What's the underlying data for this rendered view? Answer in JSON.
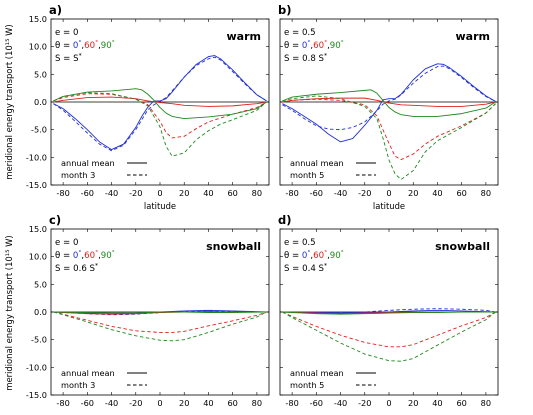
{
  "figure": {
    "ylabel": "meridional energy transport (10¹⁵ W)",
    "xlabel": "latitude"
  },
  "colors": {
    "theta0": "#1f2fd6",
    "theta60": "#e0201b",
    "theta90": "#1c8a1c",
    "legend": "#000000"
  },
  "chart_data": [
    {
      "id": "a",
      "panel_label": "a)",
      "type": "line",
      "regime": "warm",
      "params": {
        "e": "e = 0",
        "theta_prefix": "θ = ",
        "theta0": "0",
        "theta60": "60",
        "theta90": "90",
        "S": "S = S",
        "S_sup": "*"
      },
      "legend": {
        "mean": "annual mean",
        "month": "month 3"
      },
      "xlim": [
        -90,
        90
      ],
      "ylim": [
        -15,
        15
      ],
      "xticks": [
        -80,
        -60,
        -40,
        -20,
        0,
        20,
        40,
        60,
        80
      ],
      "yticks": [
        -15,
        -10,
        -5,
        0,
        5,
        10,
        15
      ],
      "show_xlabel": true,
      "show_yaxis": true,
      "series": [
        {
          "theta": 0,
          "style": "solid",
          "x": [
            -88,
            -80,
            -70,
            -60,
            -50,
            -40,
            -30,
            -20,
            -15,
            -10,
            -5,
            0,
            5,
            10,
            20,
            30,
            40,
            45,
            50,
            60,
            70,
            80,
            88
          ],
          "y": [
            -0.3,
            -1.2,
            -3,
            -5,
            -7.2,
            -8.6,
            -7.6,
            -4.6,
            -2.6,
            -0.9,
            0.2,
            0.2,
            0.6,
            1.8,
            4.5,
            6.8,
            8.2,
            8.4,
            7.8,
            5.8,
            3.5,
            1.3,
            0.2
          ]
        },
        {
          "theta": 0,
          "style": "dashed",
          "x": [
            -88,
            -80,
            -70,
            -60,
            -50,
            -40,
            -30,
            -20,
            -15,
            -10,
            -5,
            0,
            5,
            10,
            20,
            30,
            40,
            45,
            50,
            60,
            70,
            80,
            88
          ],
          "y": [
            -0.3,
            -1.5,
            -3.5,
            -5.6,
            -7.6,
            -8.8,
            -7.8,
            -5,
            -3.2,
            -1.4,
            -0.5,
            0.1,
            0.8,
            2,
            4.5,
            6.6,
            7.8,
            8.1,
            7.6,
            5.5,
            3.3,
            1.3,
            0.2
          ]
        },
        {
          "theta": 60,
          "style": "solid",
          "x": [
            -88,
            -80,
            -60,
            -40,
            -20,
            -10,
            0,
            10,
            20,
            40,
            60,
            80,
            88
          ],
          "y": [
            0,
            0.3,
            0.8,
            0.9,
            0.6,
            0.2,
            -0.1,
            -0.3,
            -0.6,
            -0.8,
            -0.7,
            -0.3,
            0
          ]
        },
        {
          "theta": 60,
          "style": "dashed",
          "x": [
            -88,
            -80,
            -60,
            -40,
            -20,
            -10,
            0,
            5,
            10,
            20,
            30,
            40,
            60,
            80,
            88
          ],
          "y": [
            0.2,
            0.8,
            1.5,
            1.4,
            0.5,
            -0.5,
            -3.5,
            -5.5,
            -6.5,
            -6.2,
            -4.8,
            -3.6,
            -2.2,
            -1,
            0
          ]
        },
        {
          "theta": 90,
          "style": "solid",
          "x": [
            -88,
            -80,
            -60,
            -40,
            -20,
            -15,
            -10,
            -5,
            0,
            5,
            10,
            20,
            40,
            60,
            80,
            88
          ],
          "y": [
            0.2,
            1,
            1.8,
            2,
            2.4,
            2.2,
            1.4,
            0.3,
            -1,
            -2,
            -2.6,
            -3,
            -2.7,
            -2.2,
            -1.2,
            0
          ]
        },
        {
          "theta": 90,
          "style": "dashed",
          "x": [
            -88,
            -80,
            -60,
            -40,
            -20,
            -10,
            0,
            5,
            10,
            20,
            30,
            40,
            50,
            60,
            80,
            88
          ],
          "y": [
            0.2,
            1,
            1.7,
            1.5,
            0.5,
            -0.7,
            -4.5,
            -8,
            -9.8,
            -9.2,
            -6.8,
            -5.2,
            -4,
            -3.2,
            -1.5,
            0
          ]
        }
      ]
    },
    {
      "id": "b",
      "panel_label": "b)",
      "type": "line",
      "regime": "warm",
      "params": {
        "e": "e = 0.5",
        "theta_prefix": "θ = ",
        "theta0": "0",
        "theta60": "60",
        "theta90": "90",
        "S": "S = 0.8 S",
        "S_sup": "*"
      },
      "legend": {
        "mean": "annual mean",
        "month": "month 5"
      },
      "xlim": [
        -90,
        90
      ],
      "ylim": [
        -15,
        15
      ],
      "xticks": [
        -80,
        -60,
        -40,
        -20,
        0,
        20,
        40,
        60,
        80
      ],
      "yticks": [
        -15,
        -10,
        -5,
        0,
        5,
        10,
        15
      ],
      "show_xlabel": true,
      "show_yaxis": false,
      "series": [
        {
          "theta": 0,
          "style": "solid",
          "x": [
            -88,
            -80,
            -70,
            -60,
            -50,
            -40,
            -30,
            -20,
            -10,
            -5,
            0,
            5,
            10,
            20,
            30,
            40,
            45,
            50,
            60,
            70,
            80,
            88
          ],
          "y": [
            -0.3,
            -1.2,
            -2.6,
            -4,
            -5.8,
            -7.2,
            -6.6,
            -4.2,
            -1.5,
            0.4,
            0.6,
            0.6,
            1.4,
            4,
            6,
            6.9,
            6.8,
            6.2,
            4.6,
            2.8,
            1.1,
            0.1
          ]
        },
        {
          "theta": 0,
          "style": "dashed",
          "x": [
            -88,
            -80,
            -70,
            -60,
            -50,
            -40,
            -30,
            -20,
            -10,
            -5,
            0,
            5,
            10,
            20,
            30,
            40,
            45,
            50,
            60,
            70,
            80,
            88
          ],
          "y": [
            -0.5,
            -1.5,
            -3,
            -4.3,
            -4.9,
            -5,
            -4.6,
            -3.6,
            -1.6,
            -0.4,
            0.2,
            0.5,
            1.3,
            3.4,
            5.2,
            6.4,
            6.5,
            6,
            4.4,
            2.6,
            1,
            0.1
          ]
        },
        {
          "theta": 60,
          "style": "solid",
          "x": [
            -88,
            -80,
            -60,
            -40,
            -20,
            -10,
            0,
            10,
            20,
            40,
            60,
            80,
            88
          ],
          "y": [
            0,
            0.3,
            0.6,
            0.7,
            0.7,
            0.3,
            -0.2,
            -0.5,
            -0.6,
            -0.8,
            -0.8,
            -0.4,
            0
          ]
        },
        {
          "theta": 60,
          "style": "dashed",
          "x": [
            -88,
            -80,
            -60,
            -40,
            -20,
            -10,
            0,
            5,
            10,
            20,
            30,
            40,
            60,
            80,
            88
          ],
          "y": [
            0,
            0.3,
            0.5,
            0.3,
            -0.5,
            -2.5,
            -7.5,
            -9.8,
            -10.4,
            -9.4,
            -7.6,
            -6.2,
            -4.3,
            -2,
            -0.3
          ]
        },
        {
          "theta": 90,
          "style": "solid",
          "x": [
            -88,
            -80,
            -60,
            -40,
            -20,
            -15,
            -10,
            -5,
            0,
            5,
            10,
            20,
            40,
            60,
            80,
            88
          ],
          "y": [
            0.2,
            0.9,
            1.4,
            1.7,
            2.1,
            2.2,
            1.6,
            0.3,
            -1,
            -1.8,
            -2.3,
            -2.6,
            -2.6,
            -2.1,
            -1.1,
            0
          ]
        },
        {
          "theta": 90,
          "style": "dashed",
          "x": [
            -88,
            -80,
            -60,
            -40,
            -20,
            -10,
            -5,
            0,
            5,
            10,
            20,
            30,
            40,
            60,
            80,
            88
          ],
          "y": [
            0.2,
            0.6,
            1.1,
            0.6,
            -0.8,
            -3,
            -6.5,
            -10.5,
            -13,
            -14,
            -12.4,
            -9,
            -7,
            -4.6,
            -2,
            -0.3
          ]
        }
      ]
    },
    {
      "id": "c",
      "panel_label": "c)",
      "type": "line",
      "regime": "snowball",
      "params": {
        "e": "e = 0",
        "theta_prefix": "θ = ",
        "theta0": "0",
        "theta60": "60",
        "theta90": "90",
        "S": "S = 0.6 S",
        "S_sup": "*"
      },
      "legend": {
        "mean": "annual mean",
        "month": "month 3"
      },
      "xlim": [
        -90,
        90
      ],
      "ylim": [
        -15,
        15
      ],
      "xticks": [
        -80,
        -60,
        -40,
        -20,
        0,
        20,
        40,
        60,
        80
      ],
      "yticks": [
        -15,
        -10,
        -5,
        0,
        5,
        10,
        15
      ],
      "show_xlabel": false,
      "show_yaxis": true,
      "series": [
        {
          "theta": 0,
          "style": "solid",
          "x": [
            -88,
            -60,
            -40,
            -20,
            0,
            20,
            40,
            60,
            88
          ],
          "y": [
            0,
            -0.2,
            -0.4,
            -0.3,
            0,
            0.2,
            0.3,
            0.2,
            0
          ]
        },
        {
          "theta": 0,
          "style": "dashed",
          "x": [
            -88,
            -60,
            -40,
            -20,
            0,
            20,
            40,
            60,
            88
          ],
          "y": [
            0,
            -0.3,
            -0.5,
            -0.4,
            -0.1,
            0.1,
            0.2,
            0.1,
            0
          ]
        },
        {
          "theta": 60,
          "style": "solid",
          "x": [
            -88,
            -60,
            -40,
            -20,
            0,
            20,
            40,
            60,
            88
          ],
          "y": [
            0,
            -0.3,
            -0.4,
            -0.3,
            -0.1,
            0,
            0.1,
            0,
            0
          ]
        },
        {
          "theta": 60,
          "style": "dashed",
          "x": [
            -88,
            -80,
            -60,
            -40,
            -20,
            0,
            10,
            20,
            40,
            60,
            80,
            88
          ],
          "y": [
            0,
            -0.4,
            -1.5,
            -2.6,
            -3.4,
            -3.7,
            -3.7,
            -3.5,
            -2.5,
            -1.6,
            -0.6,
            0
          ]
        },
        {
          "theta": 90,
          "style": "solid",
          "x": [
            -88,
            -60,
            -40,
            -20,
            0,
            20,
            40,
            60,
            88
          ],
          "y": [
            0,
            -0.1,
            -0.2,
            -0.2,
            0,
            0,
            -0.1,
            -0.1,
            0
          ]
        },
        {
          "theta": 90,
          "style": "dashed",
          "x": [
            -88,
            -80,
            -60,
            -40,
            -20,
            0,
            10,
            20,
            40,
            60,
            80,
            88
          ],
          "y": [
            0,
            -0.5,
            -1.8,
            -3.2,
            -4.3,
            -5.1,
            -5.2,
            -5,
            -3.7,
            -2.2,
            -0.9,
            0
          ]
        }
      ]
    },
    {
      "id": "d",
      "panel_label": "d)",
      "type": "line",
      "regime": "snowball",
      "params": {
        "e": "e = 0.5",
        "theta_prefix": "θ = ",
        "theta0": "0",
        "theta60": "60",
        "theta90": "90",
        "S": "S = 0.4 S",
        "S_sup": "*"
      },
      "legend": {
        "mean": "annual mean",
        "month": "month 5"
      },
      "xlim": [
        -90,
        90
      ],
      "ylim": [
        -15,
        15
      ],
      "xticks": [
        -80,
        -60,
        -40,
        -20,
        0,
        20,
        40,
        60,
        80
      ],
      "yticks": [
        -15,
        -10,
        -5,
        0,
        5,
        10,
        15
      ],
      "show_xlabel": false,
      "show_yaxis": false,
      "series": [
        {
          "theta": 0,
          "style": "solid",
          "x": [
            -88,
            -60,
            -40,
            -20,
            0,
            20,
            40,
            60,
            88
          ],
          "y": [
            0,
            -0.1,
            -0.2,
            -0.1,
            0,
            0.2,
            0.3,
            0.2,
            0
          ]
        },
        {
          "theta": 0,
          "style": "dashed",
          "x": [
            -88,
            -60,
            -40,
            -20,
            0,
            20,
            40,
            60,
            80,
            88
          ],
          "y": [
            0,
            -0.1,
            -0.1,
            0,
            0.3,
            0.5,
            0.6,
            0.5,
            0.3,
            0
          ]
        },
        {
          "theta": 60,
          "style": "solid",
          "x": [
            -88,
            -60,
            -40,
            -20,
            0,
            20,
            40,
            60,
            88
          ],
          "y": [
            0,
            -0.2,
            -0.3,
            -0.2,
            -0.1,
            0,
            0,
            0,
            0
          ]
        },
        {
          "theta": 60,
          "style": "dashed",
          "x": [
            -88,
            -80,
            -60,
            -40,
            -20,
            0,
            10,
            20,
            40,
            60,
            80,
            88
          ],
          "y": [
            0,
            -0.8,
            -2.6,
            -4.2,
            -5.5,
            -6.3,
            -6.3,
            -5.9,
            -4.2,
            -2.5,
            -1,
            0
          ]
        },
        {
          "theta": 90,
          "style": "solid",
          "x": [
            -88,
            -60,
            -40,
            -20,
            0,
            20,
            40,
            60,
            88
          ],
          "y": [
            0,
            -0.3,
            -0.4,
            -0.3,
            -0.2,
            -0.1,
            -0.1,
            0,
            0
          ]
        },
        {
          "theta": 90,
          "style": "dashed",
          "x": [
            -88,
            -80,
            -60,
            -40,
            -20,
            0,
            10,
            20,
            40,
            60,
            80,
            88
          ],
          "y": [
            0,
            -1,
            -3.3,
            -5.6,
            -7.6,
            -8.8,
            -8.9,
            -8.4,
            -6,
            -3.6,
            -1.4,
            0
          ]
        }
      ]
    }
  ]
}
